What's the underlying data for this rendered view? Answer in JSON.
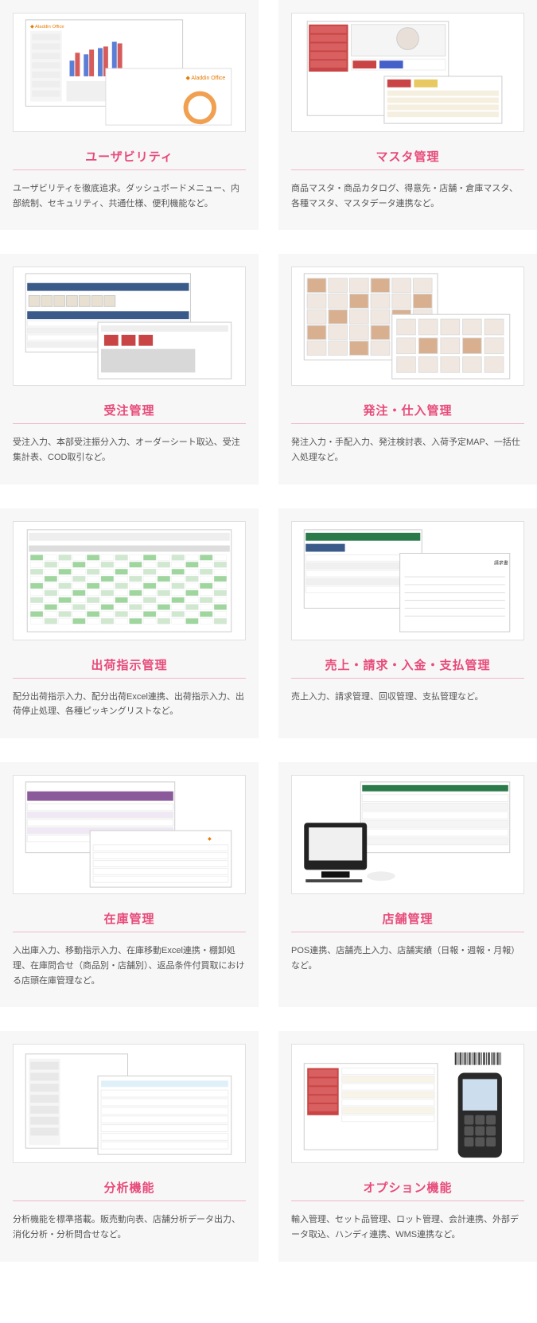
{
  "accent_color": "#e84a7a",
  "underline_color": "#f2b8c9",
  "bg_card": "#f7f7f7",
  "text_color": "#555555",
  "cards": [
    {
      "id": "usability",
      "title": "ユーザビリティ",
      "desc": "ユーザビリティを徹底追求。ダッシュボードメニュー、内部統制、セキュリティ、共通仕様、便利機能など。",
      "thumb_type": "dashboard_chart",
      "brand_label": "Aladdin Office"
    },
    {
      "id": "master",
      "title": "マスタ管理",
      "desc": "商品マスタ・商品カタログ、得意先・店舗・倉庫マスタ、各種マスタ、マスタデータ連携など。",
      "thumb_type": "master_grid"
    },
    {
      "id": "order-mgmt",
      "title": "受注管理",
      "desc": "受注入力、本部受注振分入力、オーダーシート取込、受注集計表、COD取引など。",
      "thumb_type": "order_sheet"
    },
    {
      "id": "purchase-mgmt",
      "title": "発注・仕入管理",
      "desc": "発注入力・手配入力、発注検討表、入荷予定MAP、一括仕入処理など。",
      "thumb_type": "catalog_grid"
    },
    {
      "id": "shipping",
      "title": "出荷指示管理",
      "desc": "配分出荷指示入力、配分出荷Excel連携、出荷指示入力、出荷停止処理、各種ピッキングリストなど。",
      "thumb_type": "green_table"
    },
    {
      "id": "sales-billing",
      "title": "売上・請求・入金・支払管理",
      "desc": "売上入力、請求管理、回収管理、支払管理など。",
      "thumb_type": "invoice_split"
    },
    {
      "id": "inventory",
      "title": "在庫管理",
      "desc": "入出庫入力、移動指示入力、在庫移動Excel連携・棚卸処理、在庫問合せ（商品別・店舗別）、返品条件付買取における店頭在庫管理など。",
      "thumb_type": "purple_table"
    },
    {
      "id": "store",
      "title": "店舗管理",
      "desc": "POS連携、店舗売上入力、店舗実績（日報・週報・月報）など。",
      "thumb_type": "pos_device"
    },
    {
      "id": "analytics",
      "title": "分析機能",
      "desc": "分析機能を標準搭載。販売動向表、店舗分析データ出力、消化分析・分析問合せなど。",
      "thumb_type": "analytics_tree"
    },
    {
      "id": "option",
      "title": "オプション機能",
      "desc": "輸入管理、セット品管理、ロット管理、会計連携、外部データ取込、ハンディ連携、WMS連携など。",
      "thumb_type": "handy_terminal"
    }
  ]
}
